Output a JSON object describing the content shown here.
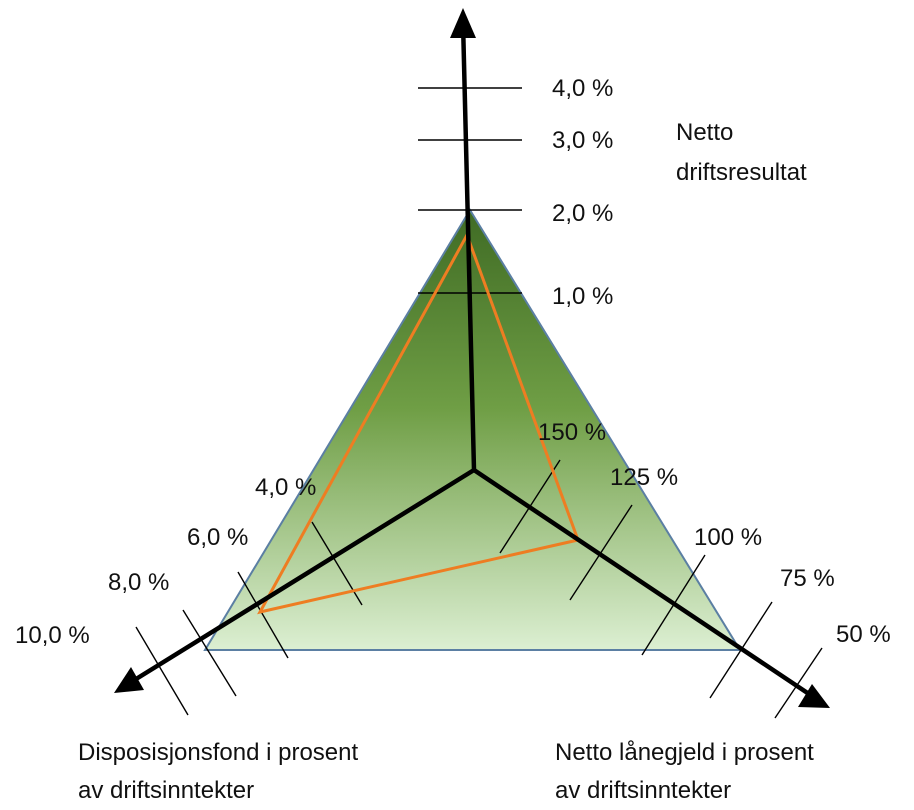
{
  "colors": {
    "triangle_fill_top": "#3f6b24",
    "triangle_fill_bottom": "#dcefd2",
    "triangle_stroke": "#5b7fa3",
    "profile_line": "#ee7d22",
    "axes": "#000000"
  },
  "axis_top": {
    "title_line1": "Netto",
    "title_line2": "driftsresultat",
    "ticks": [
      "4,0 %",
      "3,0 %",
      "2,0 %",
      "1,0 %"
    ]
  },
  "axis_right": {
    "title_line1": "Netto lånegjeld i prosent",
    "title_line2": "av driftsinntekter",
    "ticks": [
      "150 %",
      "125 %",
      "100 %",
      "75 %",
      "50 %"
    ]
  },
  "axis_left": {
    "title_line1": "Disposisjonsfond i prosent",
    "title_line2": "av driftsinntekter",
    "ticks": [
      "4,0 %",
      "6,0 %",
      "8,0 %",
      "10,0 %"
    ]
  }
}
